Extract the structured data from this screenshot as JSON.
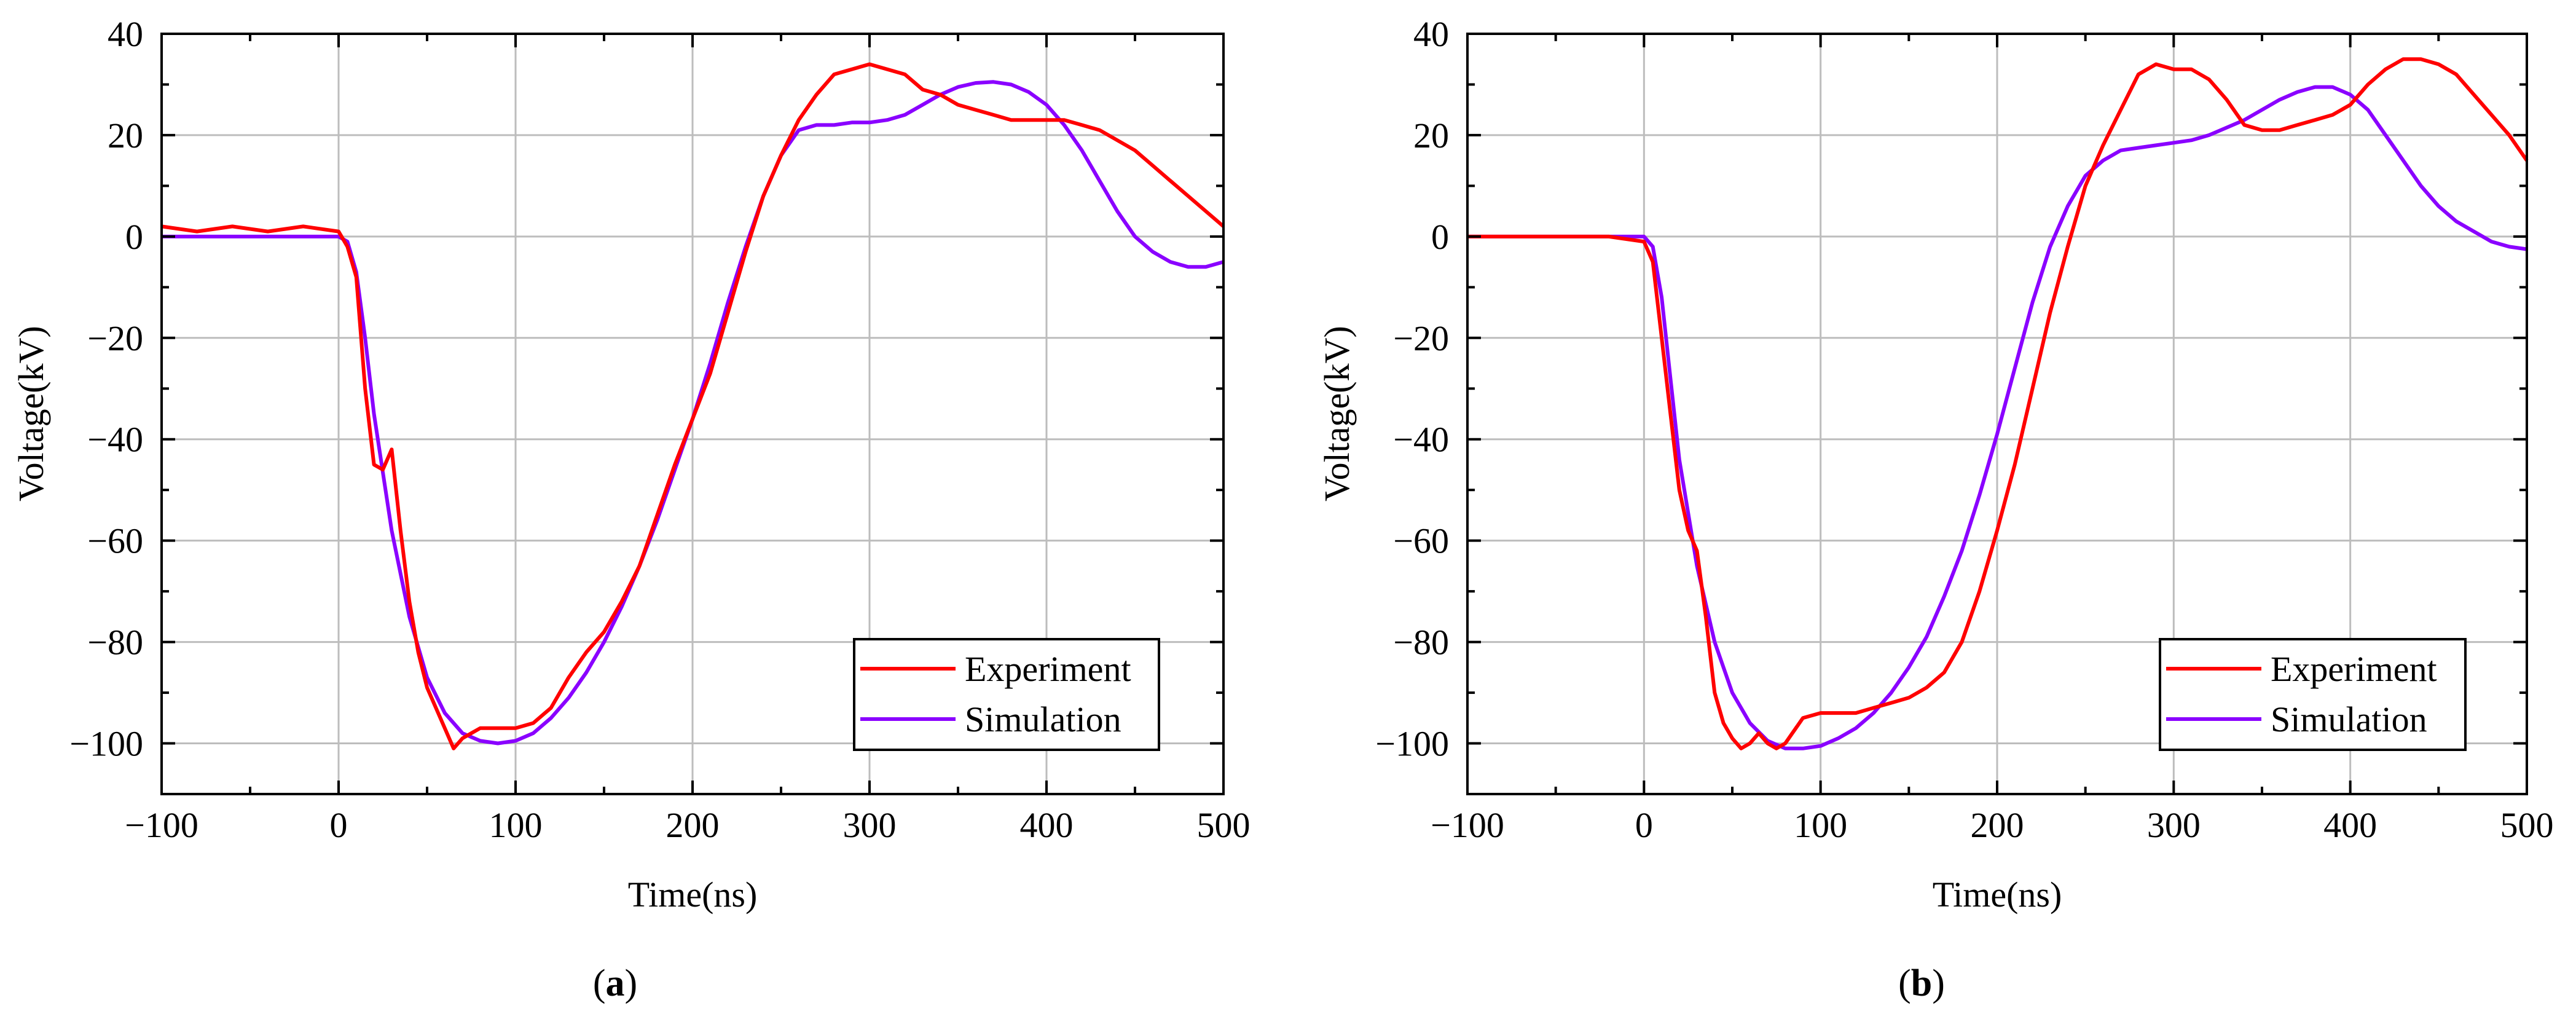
{
  "colors": {
    "experiment": "#ff0000",
    "simulation": "#8a00ff",
    "grid": "#bdbdbd"
  },
  "chart_data": [
    {
      "type": "line",
      "panel_label": "a",
      "xlabel": "Time(ns)",
      "ylabel": "Voltage(kV)",
      "xlim": [
        -100,
        500
      ],
      "ylim": [
        -110,
        40
      ],
      "xticks": [
        -100,
        0,
        100,
        200,
        300,
        400,
        500
      ],
      "yticks": [
        40,
        20,
        0,
        -20,
        -40,
        -60,
        -80,
        -100
      ],
      "xtick_labels": [
        "−100",
        "0",
        "100",
        "200",
        "300",
        "400",
        "500"
      ],
      "ytick_labels": [
        "40",
        "20",
        "0",
        "−20",
        "−40",
        "−60",
        "−80",
        "−100"
      ],
      "legend_position": "bottom-right",
      "series": [
        {
          "name": "Experiment",
          "x": [
            -100,
            -80,
            -60,
            -40,
            -20,
            0,
            5,
            10,
            15,
            20,
            25,
            30,
            35,
            40,
            45,
            50,
            55,
            60,
            65,
            70,
            75,
            80,
            90,
            100,
            110,
            120,
            130,
            140,
            150,
            160,
            170,
            180,
            190,
            200,
            210,
            220,
            230,
            240,
            250,
            260,
            270,
            280,
            290,
            300,
            310,
            320,
            330,
            340,
            350,
            360,
            370,
            380,
            390,
            400,
            410,
            420,
            430,
            440,
            450,
            460,
            470,
            480,
            490,
            500
          ],
          "y": [
            2,
            1,
            2,
            1,
            2,
            1,
            -2,
            -8,
            -30,
            -45,
            -46,
            -42,
            -58,
            -72,
            -82,
            -89,
            -93,
            -97,
            -101,
            -99,
            -98,
            -97,
            -97,
            -97,
            -96,
            -93,
            -87,
            -82,
            -78,
            -72,
            -65,
            -55,
            -45,
            -36,
            -27,
            -15,
            -3,
            8,
            16,
            23,
            28,
            32,
            33,
            34,
            33,
            32,
            29,
            28,
            26,
            25,
            24,
            23,
            23,
            23,
            23,
            22,
            21,
            19,
            17,
            14,
            11,
            8,
            5,
            2
          ]
        },
        {
          "name": "Simulation",
          "x": [
            -100,
            -50,
            0,
            5,
            10,
            15,
            20,
            30,
            40,
            50,
            60,
            70,
            80,
            90,
            100,
            110,
            120,
            130,
            140,
            150,
            160,
            170,
            180,
            190,
            200,
            210,
            220,
            230,
            240,
            250,
            260,
            270,
            280,
            290,
            300,
            310,
            320,
            330,
            340,
            350,
            360,
            370,
            380,
            390,
            400,
            410,
            420,
            430,
            440,
            450,
            460,
            470,
            480,
            490,
            500
          ],
          "y": [
            0,
            0,
            0,
            -1,
            -7,
            -20,
            -35,
            -58,
            -75,
            -87,
            -94,
            -98,
            -99.5,
            -100,
            -99.5,
            -98,
            -95,
            -91,
            -86,
            -80,
            -73,
            -65,
            -56,
            -46,
            -36,
            -25,
            -13,
            -2,
            8,
            16,
            21,
            22,
            22,
            22.5,
            22.5,
            23,
            24,
            26,
            28,
            29.5,
            30.3,
            30.5,
            30,
            28.5,
            26,
            22,
            17,
            11,
            5,
            0,
            -3,
            -5,
            -6,
            -6,
            -5
          ]
        }
      ]
    },
    {
      "type": "line",
      "panel_label": "b",
      "xlabel": "Time(ns)",
      "ylabel": "Voltage(kV)",
      "xlim": [
        -100,
        500
      ],
      "ylim": [
        -110,
        40
      ],
      "xticks": [
        -100,
        0,
        100,
        200,
        300,
        400,
        500
      ],
      "yticks": [
        40,
        20,
        0,
        -20,
        -40,
        -60,
        -80,
        -100
      ],
      "xtick_labels": [
        "−100",
        "0",
        "100",
        "200",
        "300",
        "400",
        "500"
      ],
      "ytick_labels": [
        "40",
        "20",
        "0",
        "−20",
        "−40",
        "−60",
        "−80",
        "−100"
      ],
      "legend_position": "bottom-right",
      "series": [
        {
          "name": "Experiment",
          "x": [
            -100,
            -80,
            -60,
            -40,
            -20,
            0,
            5,
            10,
            15,
            20,
            25,
            30,
            35,
            40,
            45,
            50,
            55,
            60,
            65,
            70,
            75,
            80,
            90,
            100,
            110,
            120,
            130,
            140,
            150,
            160,
            170,
            180,
            190,
            200,
            210,
            220,
            230,
            240,
            250,
            260,
            270,
            280,
            290,
            300,
            310,
            320,
            330,
            340,
            350,
            360,
            370,
            380,
            390,
            400,
            410,
            420,
            430,
            440,
            450,
            460,
            470,
            480,
            490,
            500
          ],
          "y": [
            0,
            0,
            0,
            0,
            0,
            -1,
            -5,
            -20,
            -35,
            -50,
            -58,
            -62,
            -75,
            -90,
            -96,
            -99,
            -101,
            -100,
            -98,
            -100,
            -101,
            -100,
            -95,
            -94,
            -94,
            -94,
            -93,
            -92,
            -91,
            -89,
            -86,
            -80,
            -70,
            -58,
            -45,
            -30,
            -15,
            -2,
            10,
            18,
            25,
            32,
            34,
            33,
            33,
            31,
            27,
            22,
            21,
            21,
            22,
            23,
            24,
            26,
            30,
            33,
            35,
            35,
            34,
            32,
            28,
            24,
            20,
            15
          ]
        },
        {
          "name": "Simulation",
          "x": [
            -100,
            -50,
            0,
            5,
            10,
            15,
            20,
            30,
            40,
            50,
            60,
            70,
            80,
            90,
            100,
            110,
            120,
            130,
            140,
            150,
            160,
            170,
            180,
            190,
            200,
            210,
            220,
            230,
            240,
            250,
            260,
            270,
            280,
            290,
            300,
            310,
            320,
            330,
            340,
            350,
            360,
            370,
            380,
            390,
            400,
            410,
            420,
            430,
            440,
            450,
            460,
            470,
            480,
            490,
            500
          ],
          "y": [
            0,
            0,
            0,
            -2,
            -12,
            -28,
            -44,
            -65,
            -80,
            -90,
            -96,
            -99.5,
            -101,
            -101,
            -100.5,
            -99,
            -97,
            -94,
            -90,
            -85,
            -79,
            -71,
            -62,
            -51,
            -39,
            -26,
            -13,
            -2,
            6,
            12,
            15,
            17,
            17.5,
            18,
            18.5,
            19,
            20,
            21.5,
            23,
            25,
            27,
            28.5,
            29.5,
            29.5,
            28,
            25,
            20,
            15,
            10,
            6,
            3,
            1,
            -1,
            -2,
            -2.5
          ]
        }
      ]
    }
  ]
}
